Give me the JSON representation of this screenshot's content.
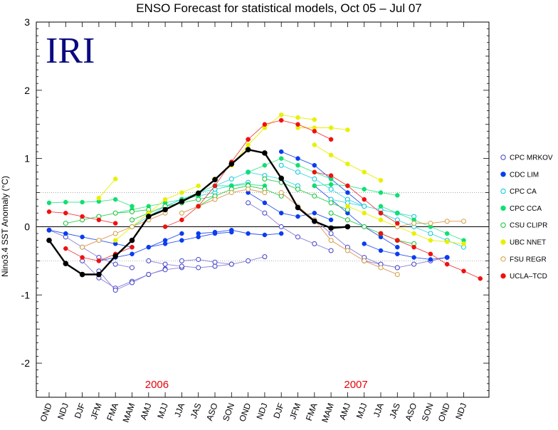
{
  "logo_text": "IRI",
  "chart_data": {
    "type": "line",
    "title": "ENSO Forecast for statistical models, Oct 05 – Jul 07",
    "ylabel": "Nino3.4 SST Anomaly (°C)",
    "xlabel": "",
    "ylim": [
      -2.5,
      3
    ],
    "yticks": [
      -2,
      -1,
      0,
      1,
      2,
      3
    ],
    "categories": [
      "OND",
      "NDJ",
      "DJF",
      "JFM",
      "FMA",
      "MAM",
      "AMJ",
      "MJJ",
      "JJA",
      "JAS",
      "ASO",
      "SON",
      "OND",
      "NDJ",
      "DJF",
      "JFM",
      "FMA",
      "MAM",
      "AMJ",
      "MJJ",
      "JJA",
      "JAS",
      "ASO",
      "SON",
      "OND",
      "NDJ"
    ],
    "year_labels": [
      {
        "text": "2006",
        "category_index": 6.5
      },
      {
        "text": "2007",
        "category_index": 18.5
      }
    ],
    "reference_lines": [
      {
        "y": 0,
        "style": "solid"
      },
      {
        "y": 0.5,
        "style": "dotted"
      },
      {
        "y": -0.5,
        "style": "dotted"
      }
    ],
    "observed": {
      "color": "#000000",
      "x": [
        0,
        1,
        2,
        3,
        4,
        5,
        6,
        7,
        8,
        9,
        10,
        11,
        12,
        13,
        14,
        15,
        16,
        17,
        18
      ],
      "values": [
        -0.2,
        -0.54,
        -0.7,
        -0.7,
        -0.43,
        -0.2,
        0.15,
        0.25,
        0.37,
        0.49,
        0.69,
        0.92,
        1.13,
        1.08,
        0.71,
        0.28,
        0.08,
        -0.02,
        0.0
      ]
    },
    "legend_position": "right",
    "series": [
      {
        "name": "CPC MRKOV",
        "marker": "open",
        "color": "#4040c8",
        "line": "#8a7fd8",
        "forecasts": [
          {
            "start": 0,
            "values": [
              -0.05,
              -0.15,
              -0.3,
              -0.45,
              -0.55,
              -0.6
            ]
          },
          {
            "start": 2,
            "values": [
              -0.5,
              -0.75,
              -0.9,
              -0.8,
              -0.7,
              -0.62
            ]
          },
          {
            "start": 3,
            "values": [
              -0.65,
              -0.93,
              -0.82,
              -0.7,
              -0.63,
              -0.6
            ]
          },
          {
            "start": 6,
            "values": [
              -0.5,
              -0.55,
              -0.58,
              -0.6,
              -0.58,
              -0.55
            ]
          },
          {
            "start": 8,
            "values": [
              -0.5,
              -0.48,
              -0.52,
              -0.55,
              -0.5,
              -0.44
            ]
          },
          {
            "start": 12,
            "values": [
              0.35,
              0.2,
              0.0,
              -0.15,
              -0.25,
              -0.35
            ]
          },
          {
            "start": 16,
            "values": [
              0.1,
              -0.1,
              -0.3,
              -0.45,
              -0.55,
              -0.6
            ]
          },
          {
            "start": 19,
            "values": [
              -0.5,
              -0.55,
              -0.6,
              -0.55,
              -0.5,
              -0.45
            ]
          }
        ]
      },
      {
        "name": "CDC LIM",
        "marker": "filled",
        "color": "#0a3cf0",
        "line": "#2a55f0",
        "forecasts": [
          {
            "start": 0,
            "values": [
              -0.05,
              -0.1,
              -0.15,
              -0.2,
              -0.25,
              -0.3
            ]
          },
          {
            "start": 3,
            "values": [
              -0.5,
              -0.45,
              -0.4,
              -0.3,
              -0.2,
              -0.1
            ]
          },
          {
            "start": 6,
            "values": [
              -0.3,
              -0.25,
              -0.2,
              -0.15,
              -0.1,
              -0.08
            ]
          },
          {
            "start": 9,
            "values": [
              -0.1,
              -0.08,
              -0.05,
              -0.1,
              -0.12,
              -0.1
            ]
          },
          {
            "start": 12,
            "values": [
              0.5,
              0.35,
              0.2,
              0.15,
              0.2,
              0.1
            ]
          },
          {
            "start": 14,
            "values": [
              1.1,
              1.0,
              0.9,
              0.7,
              0.5,
              0.3
            ]
          },
          {
            "start": 16,
            "values": [
              0.6,
              0.4,
              0.2,
              0.0,
              -0.15,
              -0.3
            ]
          },
          {
            "start": 19,
            "values": [
              -0.25,
              -0.35,
              -0.4,
              -0.45,
              -0.48,
              -0.45
            ]
          }
        ]
      },
      {
        "name": "CPC CA",
        "marker": "open",
        "color": "#00c8d8",
        "line": "#40d8e8",
        "forecasts": [
          {
            "start": 5,
            "values": [
              0.0,
              0.15,
              0.3,
              0.4,
              0.45,
              0.5
            ]
          },
          {
            "start": 7,
            "values": [
              0.3,
              0.4,
              0.5,
              0.55,
              0.6,
              0.65
            ]
          },
          {
            "start": 10,
            "values": [
              0.6,
              0.7,
              0.8,
              0.75,
              0.7,
              0.6
            ]
          },
          {
            "start": 14,
            "values": [
              0.9,
              0.8,
              0.7,
              0.55,
              0.4,
              0.3
            ]
          },
          {
            "start": 17,
            "values": [
              0.4,
              0.35,
              0.3,
              0.25,
              0.2,
              0.15
            ]
          },
          {
            "start": 20,
            "values": [
              0.2,
              0.1,
              0.0,
              -0.1,
              -0.2,
              -0.3
            ]
          }
        ]
      },
      {
        "name": "CPC CCA",
        "marker": "filled",
        "color": "#10e070",
        "line": "#40e890",
        "forecasts": [
          {
            "start": 0,
            "values": [
              0.35,
              0.36,
              0.36,
              0.37,
              0.4,
              0.3
            ]
          },
          {
            "start": 4,
            "values": [
              0.2,
              0.25,
              0.3,
              0.35,
              0.4,
              0.45
            ]
          },
          {
            "start": 8,
            "values": [
              0.4,
              0.5,
              0.6,
              0.6,
              0.62,
              0.6
            ]
          },
          {
            "start": 12,
            "values": [
              0.8,
              0.9,
              1.0,
              0.9,
              0.8,
              0.7
            ]
          },
          {
            "start": 16,
            "values": [
              0.6,
              0.62,
              0.6,
              0.55,
              0.5,
              0.46
            ]
          },
          {
            "start": 20,
            "values": [
              0.3,
              0.2,
              0.1,
              0.0,
              -0.1,
              -0.2
            ]
          }
        ]
      },
      {
        "name": "CSU CLIPR",
        "marker": "open",
        "color": "#10c030",
        "line": "#30d050",
        "forecasts": [
          {
            "start": 1,
            "values": [
              0.05,
              0.1,
              0.15,
              0.2,
              0.22,
              0.25
            ]
          },
          {
            "start": 5,
            "values": [
              0.1,
              0.2,
              0.3,
              0.35,
              0.4,
              0.45
            ]
          },
          {
            "start": 9,
            "values": [
              0.3,
              0.45,
              0.55,
              0.6,
              0.55,
              0.45
            ]
          },
          {
            "start": 13,
            "values": [
              0.7,
              0.65,
              0.55,
              0.45,
              0.35,
              0.25
            ]
          },
          {
            "start": 17,
            "values": [
              0.2,
              0.1,
              0.0,
              -0.1,
              -0.2,
              -0.25
            ]
          }
        ]
      },
      {
        "name": "UBC NNET",
        "marker": "filled",
        "color": "#e8f000",
        "line": "#e8f000",
        "forecasts": [
          {
            "start": 3,
            "values": [
              0.42,
              0.7
            ]
          },
          {
            "start": 4,
            "values": [
              -0.2,
              0.0,
              0.2,
              0.4,
              0.5,
              0.6
            ]
          },
          {
            "start": 9,
            "values": [
              0.5,
              0.7,
              0.9,
              1.2,
              1.45,
              1.64,
              1.6,
              1.57
            ]
          },
          {
            "start": 15,
            "values": [
              1.45,
              1.45,
              1.45,
              1.42
            ]
          },
          {
            "start": 16,
            "values": [
              1.2,
              1.05,
              0.92,
              0.8,
              0.68
            ]
          },
          {
            "start": 18,
            "values": [
              0.3,
              0.2,
              0.1,
              0.0,
              -0.1,
              -0.2,
              -0.22,
              -0.25
            ]
          }
        ]
      },
      {
        "name": "FSU REGR",
        "marker": "open",
        "color": "#d0a040",
        "line": "#e09050",
        "forecasts": [
          {
            "start": 2,
            "values": [
              -0.3,
              -0.2,
              -0.1,
              0.0,
              0.1,
              0.2
            ]
          },
          {
            "start": 8,
            "values": [
              0.2,
              0.3,
              0.4,
              0.5,
              0.55,
              0.5
            ]
          },
          {
            "start": 14,
            "values": [
              0.5,
              0.3,
              0.1,
              -0.2,
              -0.35,
              -0.5,
              -0.6,
              -0.7
            ]
          },
          {
            "start": 21,
            "values": [
              0.0,
              0.05,
              0.05,
              0.08,
              0.08
            ]
          }
        ]
      },
      {
        "name": "UCLA–TCD",
        "marker": "filled",
        "color": "#f01010",
        "line": "#f04040",
        "forecasts": [
          {
            "start": 0,
            "values": [
              0.22,
              0.2,
              0.15,
              0.1,
              0.05
            ]
          },
          {
            "start": 1,
            "values": [
              -0.32,
              -0.45,
              -0.5,
              -0.4,
              -0.3
            ]
          },
          {
            "start": 7,
            "values": [
              0.0,
              0.1,
              0.3,
              0.6,
              0.95,
              1.28
            ]
          },
          {
            "start": 12,
            "values": [
              1.28,
              1.5,
              1.56,
              1.5,
              1.4,
              1.28
            ]
          },
          {
            "start": 16,
            "values": [
              0.8,
              0.75,
              0.6,
              0.4,
              0.2,
              0.05
            ]
          },
          {
            "start": 20,
            "values": [
              -0.1,
              -0.2,
              -0.3,
              -0.4,
              -0.55,
              -0.65,
              -0.76
            ]
          }
        ]
      }
    ]
  }
}
